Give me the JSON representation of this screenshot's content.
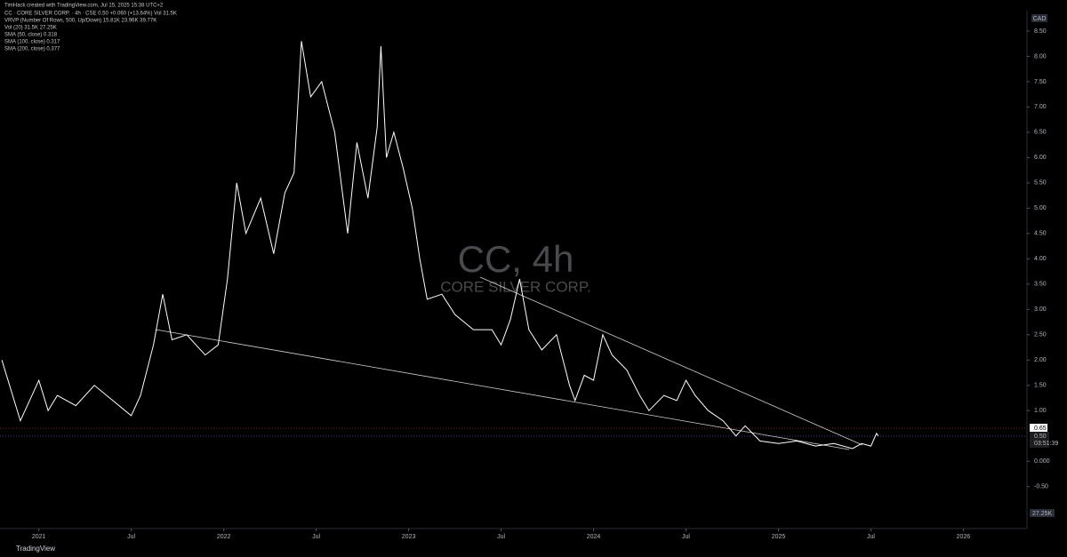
{
  "header": {
    "credit": "TimHack created with TradingView.com, Jul 15, 2025 15:38 UTC+2"
  },
  "legend": [
    "CC · CORE SILVER CORP. · 4h · CSE  0.50  +0.060 (+13.64%)  Vol 31.5K",
    "VRVP (Number Of Rows, 500, Up/Down)  15.81K  23.96K  39.77K",
    "Vol (20)  31.5K  27.25K",
    "SMA (50, close)  0.318",
    "SMA (100, close)  0.317",
    "SMA (200, close)  0.377"
  ],
  "watermark": {
    "symbol": "CC, 4h",
    "name": "CORE SILVER CORP."
  },
  "currency": "CAD",
  "price_labels": [
    "0.65",
    "0.50",
    "03:51:39"
  ],
  "volume_label": "27.25K",
  "footer": "TradingView",
  "chart_data": {
    "type": "line",
    "x": [
      2020.8,
      2020.85,
      2020.9,
      2020.95,
      2021.0,
      2021.05,
      2021.1,
      2021.2,
      2021.3,
      2021.4,
      2021.5,
      2021.55,
      2021.62,
      2021.67,
      2021.72,
      2021.8,
      2021.9,
      2021.97,
      2022.02,
      2022.07,
      2022.12,
      2022.2,
      2022.27,
      2022.33,
      2022.38,
      2022.42,
      2022.47,
      2022.53,
      2022.6,
      2022.67,
      2022.72,
      2022.78,
      2022.83,
      2022.85,
      2022.88,
      2022.92,
      2022.97,
      2023.02,
      2023.06,
      2023.1,
      2023.18,
      2023.25,
      2023.35,
      2023.45,
      2023.5,
      2023.55,
      2023.6,
      2023.65,
      2023.72,
      2023.8,
      2023.87,
      2023.9,
      2023.95,
      2024.0,
      2024.05,
      2024.1,
      2024.18,
      2024.25,
      2024.3,
      2024.38,
      2024.45,
      2024.5,
      2024.55,
      2024.62,
      2024.7,
      2024.77,
      2024.82,
      2024.9,
      2025.0,
      2025.1,
      2025.2,
      2025.3,
      2025.4,
      2025.45,
      2025.5,
      2025.53,
      2025.54
    ],
    "series": [
      {
        "name": "CC",
        "color": "#ffffff",
        "values": [
          2.0,
          1.4,
          0.8,
          1.2,
          1.6,
          1.0,
          1.3,
          1.1,
          1.5,
          1.2,
          0.9,
          1.3,
          2.3,
          3.3,
          2.4,
          2.5,
          2.1,
          2.3,
          3.6,
          5.5,
          4.5,
          5.2,
          4.1,
          5.3,
          5.7,
          8.3,
          7.2,
          7.5,
          6.5,
          4.5,
          6.3,
          5.2,
          6.6,
          8.2,
          6.0,
          6.5,
          5.8,
          5.0,
          4.0,
          3.2,
          3.3,
          2.9,
          2.6,
          2.6,
          2.3,
          2.8,
          3.6,
          2.6,
          2.2,
          2.5,
          1.5,
          1.2,
          1.7,
          1.6,
          2.5,
          2.1,
          1.8,
          1.3,
          1.0,
          1.3,
          1.2,
          1.6,
          1.3,
          1.0,
          0.8,
          0.5,
          0.7,
          0.4,
          0.35,
          0.4,
          0.3,
          0.35,
          0.25,
          0.35,
          0.3,
          0.55,
          0.5
        ]
      }
    ],
    "xlim": [
      2020.79,
      2026.32
    ],
    "ylim": [
      -1.33,
      8.85
    ],
    "xticks": [
      {
        "value": 2021,
        "label": "2021"
      },
      {
        "value": 2021.5,
        "label": "Jul"
      },
      {
        "value": 2022,
        "label": "2022"
      },
      {
        "value": 2022.5,
        "label": "Jul"
      },
      {
        "value": 2023,
        "label": "2023"
      },
      {
        "value": 2023.5,
        "label": "Jul"
      },
      {
        "value": 2024,
        "label": "2024"
      },
      {
        "value": 2024.5,
        "label": "Jul"
      },
      {
        "value": 2025,
        "label": "2025"
      },
      {
        "value": 2025.5,
        "label": "Jul"
      },
      {
        "value": 2026,
        "label": "2026"
      }
    ],
    "yticks": [
      {
        "value": -0.5,
        "label": "-0.50"
      },
      {
        "value": 0,
        "label": "0.000"
      },
      {
        "value": 1,
        "label": "1.00"
      },
      {
        "value": 1.5,
        "label": "1.50"
      },
      {
        "value": 2,
        "label": "2.00"
      },
      {
        "value": 2.5,
        "label": "2.50"
      },
      {
        "value": 3,
        "label": "3.00"
      },
      {
        "value": 3.5,
        "label": "3.50"
      },
      {
        "value": 4,
        "label": "4.00"
      },
      {
        "value": 4.5,
        "label": "4.50"
      },
      {
        "value": 5,
        "label": "5.00"
      },
      {
        "value": 5.5,
        "label": "5.50"
      },
      {
        "value": 6,
        "label": "6.00"
      },
      {
        "value": 6.5,
        "label": "6.50"
      },
      {
        "value": 7,
        "label": "7.00"
      },
      {
        "value": 7.5,
        "label": "7.50"
      },
      {
        "value": 8,
        "label": "8.00"
      },
      {
        "value": 8.5,
        "label": "8.50"
      }
    ]
  }
}
